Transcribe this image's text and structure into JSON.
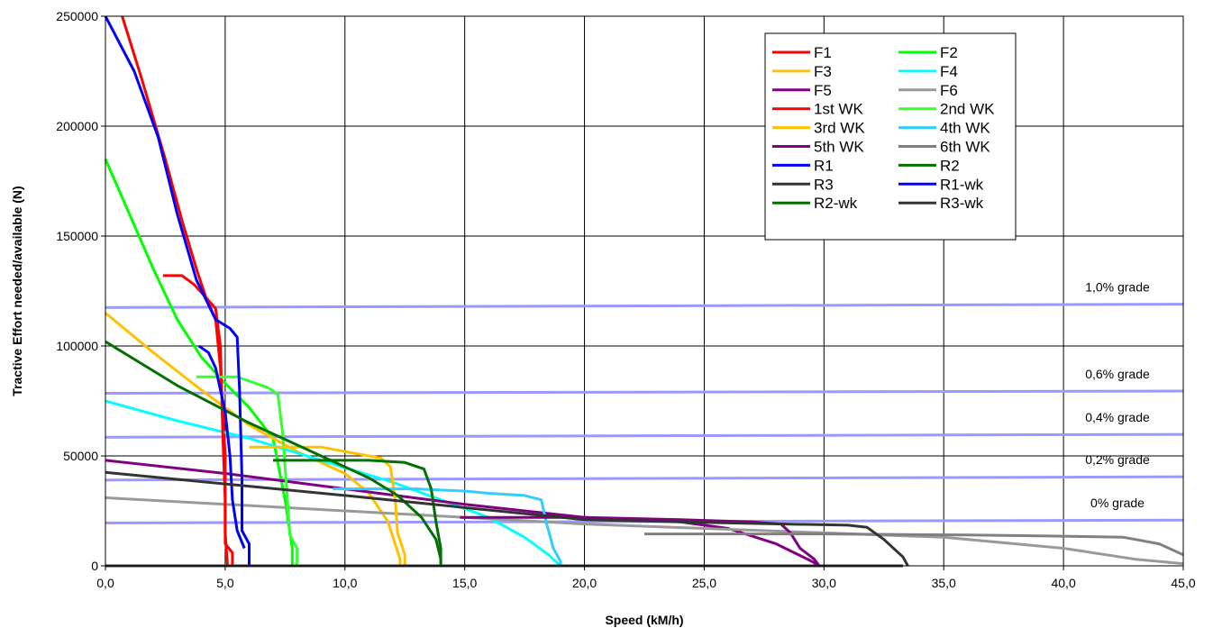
{
  "chart_data": {
    "type": "line",
    "title": "",
    "xlabel": "Speed (kM/h)",
    "ylabel": "Tractive Effort needed/available (N)",
    "xlim": [
      0,
      45
    ],
    "ylim": [
      0,
      250000
    ],
    "grid": true,
    "legend_position": "top-right",
    "x_ticks": [
      "0,0",
      "5,0",
      "10,0",
      "15,0",
      "20,0",
      "25,0",
      "30,0",
      "35,0",
      "40,0",
      "45,0"
    ],
    "x_tick_values": [
      0,
      5,
      10,
      15,
      20,
      25,
      30,
      35,
      40,
      45
    ],
    "y_ticks": [
      "0",
      "50000",
      "100000",
      "150000",
      "200000",
      "250000"
    ],
    "y_tick_values": [
      0,
      50000,
      100000,
      150000,
      200000,
      250000
    ],
    "series": [
      {
        "name": "F1",
        "color": "#ff0000",
        "points": [
          [
            0.7,
            250000
          ],
          [
            1.5,
            222000
          ],
          [
            2.5,
            185000
          ],
          [
            3.2,
            157000
          ],
          [
            3.8,
            135000
          ],
          [
            4.2,
            122000
          ],
          [
            4.6,
            112000
          ],
          [
            4.8,
            90000
          ],
          [
            5.0,
            50000
          ],
          [
            5.0,
            15000
          ],
          [
            5.1,
            0
          ]
        ]
      },
      {
        "name": "F2",
        "color": "#00ff00",
        "points": [
          [
            0,
            185000
          ],
          [
            1,
            160000
          ],
          [
            2,
            135000
          ],
          [
            3,
            112000
          ],
          [
            4,
            95000
          ],
          [
            5,
            83000
          ],
          [
            6,
            72000
          ],
          [
            7,
            58000
          ],
          [
            7.5,
            30000
          ],
          [
            7.8,
            8000
          ],
          [
            7.8,
            0
          ]
        ]
      },
      {
        "name": "F3",
        "color": "#ffc000",
        "points": [
          [
            0,
            115000
          ],
          [
            2,
            97000
          ],
          [
            4,
            80000
          ],
          [
            6,
            64000
          ],
          [
            8,
            52000
          ],
          [
            10,
            42000
          ],
          [
            11,
            33000
          ],
          [
            11.8,
            20000
          ],
          [
            12.3,
            3000
          ],
          [
            12.3,
            0
          ]
        ]
      },
      {
        "name": "F4",
        "color": "#00ffff",
        "points": [
          [
            0,
            75000
          ],
          [
            3,
            66000
          ],
          [
            6,
            58000
          ],
          [
            9,
            48000
          ],
          [
            12,
            38000
          ],
          [
            14,
            30000
          ],
          [
            16,
            22000
          ],
          [
            17.5,
            13000
          ],
          [
            18.5,
            5000
          ],
          [
            19,
            0
          ]
        ]
      },
      {
        "name": "F5",
        "color": "#800080",
        "points": [
          [
            0,
            48000
          ],
          [
            5,
            42000
          ],
          [
            10,
            35000
          ],
          [
            15,
            28000
          ],
          [
            20,
            22000
          ],
          [
            24,
            20000
          ],
          [
            26,
            17000
          ],
          [
            28,
            10000
          ],
          [
            29.5,
            2000
          ],
          [
            29.8,
            0
          ]
        ]
      },
      {
        "name": "F6",
        "color": "#999999",
        "points": [
          [
            0,
            31000
          ],
          [
            10,
            25000
          ],
          [
            20,
            19000
          ],
          [
            30,
            15000
          ],
          [
            35,
            13000
          ],
          [
            40,
            8000
          ],
          [
            43,
            3000
          ],
          [
            45,
            1000
          ]
        ]
      },
      {
        "name": "1st WK",
        "color": "#ff0000",
        "points": [
          [
            2.4,
            132000
          ],
          [
            3.2,
            132000
          ],
          [
            3.7,
            128000
          ],
          [
            4.2,
            122000
          ],
          [
            4.6,
            117000
          ],
          [
            4.8,
            100000
          ],
          [
            4.9,
            60000
          ],
          [
            5.0,
            30000
          ],
          [
            5.0,
            10000
          ],
          [
            5.3,
            6000
          ],
          [
            5.3,
            0
          ]
        ]
      },
      {
        "name": "2nd WK",
        "color": "#33ff33",
        "points": [
          [
            3.8,
            86000
          ],
          [
            5.5,
            86000
          ],
          [
            6.0,
            84000
          ],
          [
            6.8,
            81000
          ],
          [
            7.2,
            78000
          ],
          [
            7.4,
            60000
          ],
          [
            7.6,
            30000
          ],
          [
            7.7,
            14000
          ],
          [
            8.0,
            8000
          ],
          [
            8.0,
            0
          ]
        ]
      },
      {
        "name": "3rd WK",
        "color": "#ffc000",
        "points": [
          [
            6.0,
            54000
          ],
          [
            9.0,
            54000
          ],
          [
            10.5,
            51000
          ],
          [
            11.5,
            49000
          ],
          [
            11.9,
            45000
          ],
          [
            12.1,
            30000
          ],
          [
            12.2,
            15000
          ],
          [
            12.5,
            5000
          ],
          [
            12.5,
            0
          ]
        ]
      },
      {
        "name": "4th WK",
        "color": "#33ccff",
        "points": [
          [
            9.5,
            35000
          ],
          [
            13,
            35000
          ],
          [
            15,
            34000
          ],
          [
            16,
            33000
          ],
          [
            17.5,
            32000
          ],
          [
            18.2,
            30000
          ],
          [
            18.4,
            20000
          ],
          [
            18.7,
            8000
          ],
          [
            19,
            2000
          ],
          [
            19,
            0
          ]
        ]
      },
      {
        "name": "5th WK",
        "color": "#800080",
        "points": [
          [
            14.8,
            22000
          ],
          [
            20,
            22000
          ],
          [
            24,
            21000
          ],
          [
            27,
            20000
          ],
          [
            28.2,
            19000
          ],
          [
            28.6,
            15000
          ],
          [
            29.0,
            8000
          ],
          [
            29.6,
            3000
          ],
          [
            29.8,
            0
          ]
        ]
      },
      {
        "name": "6th WK",
        "color": "#808080",
        "points": [
          [
            22.5,
            14500
          ],
          [
            30,
            14500
          ],
          [
            36,
            14000
          ],
          [
            40,
            13500
          ],
          [
            42.5,
            13000
          ],
          [
            44,
            10000
          ],
          [
            45,
            5000
          ]
        ]
      },
      {
        "name": "R1",
        "color": "#0000ff",
        "points": [
          [
            0,
            250000
          ],
          [
            1.2,
            225000
          ],
          [
            2.2,
            195000
          ],
          [
            3.0,
            160000
          ],
          [
            3.8,
            130000
          ],
          [
            4.6,
            112000
          ],
          [
            5.2,
            108000
          ],
          [
            5.5,
            104000
          ],
          [
            5.6,
            80000
          ],
          [
            5.7,
            40000
          ],
          [
            5.7,
            16000
          ],
          [
            6.0,
            10000
          ],
          [
            6.0,
            0
          ]
        ]
      },
      {
        "name": "R2",
        "color": "#007000",
        "points": [
          [
            0,
            102000
          ],
          [
            3,
            82000
          ],
          [
            6,
            65000
          ],
          [
            9,
            50000
          ],
          [
            11,
            40000
          ],
          [
            12.2,
            32000
          ],
          [
            13.2,
            22000
          ],
          [
            13.8,
            12000
          ],
          [
            14.0,
            3000
          ],
          [
            14.0,
            0
          ]
        ]
      },
      {
        "name": "R3",
        "color": "#333333",
        "points": [
          [
            0,
            0
          ],
          [
            33.3,
            0
          ]
        ]
      },
      {
        "name": "R1-wk",
        "color": "#0000ff",
        "points": [
          [
            3.9,
            100000
          ],
          [
            4.3,
            97000
          ],
          [
            4.6,
            90000
          ],
          [
            5.0,
            70000
          ],
          [
            5.2,
            50000
          ],
          [
            5.3,
            30000
          ],
          [
            5.5,
            16000
          ],
          [
            5.8,
            8000
          ]
        ]
      },
      {
        "name": "R2-wk",
        "color": "#007000",
        "points": [
          [
            7.0,
            48000
          ],
          [
            11,
            48000
          ],
          [
            12.5,
            47000
          ],
          [
            13.3,
            44000
          ],
          [
            13.6,
            35000
          ],
          [
            13.8,
            20000
          ],
          [
            14.0,
            8000
          ],
          [
            14.0,
            0
          ]
        ]
      },
      {
        "name": "R3-wk",
        "color": "#333333",
        "points": [
          [
            0,
            42500
          ],
          [
            10,
            32000
          ],
          [
            20,
            21000
          ],
          [
            26,
            19500
          ],
          [
            31,
            18500
          ],
          [
            31.8,
            17500
          ],
          [
            32.5,
            12000
          ],
          [
            33.3,
            4000
          ],
          [
            33.5,
            0
          ]
        ]
      }
    ],
    "grade_lines": [
      {
        "label": "1,0% grade",
        "y_start": 117500,
        "y_end": 119000
      },
      {
        "label": "0,6% grade",
        "y_start": 78500,
        "y_end": 79500
      },
      {
        "label": "0,4% grade",
        "y_start": 58500,
        "y_end": 59800
      },
      {
        "label": "0,2% grade",
        "y_start": 39000,
        "y_end": 40500
      },
      {
        "label": "0% grade",
        "y_start": 19500,
        "y_end": 20800
      }
    ],
    "grade_line_color": "#9999ff"
  }
}
